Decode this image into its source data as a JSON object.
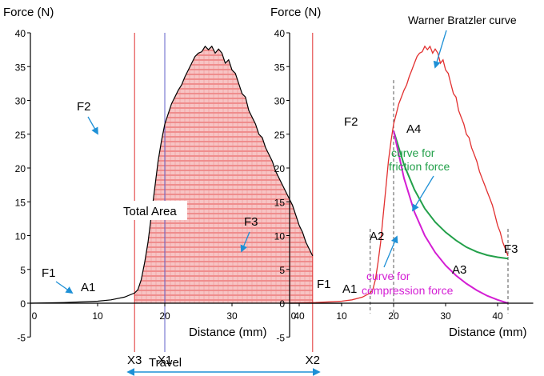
{
  "chart_data": [
    {
      "type": "area",
      "ylabel": "Force (N)",
      "xlabel": "Distance (mm)",
      "ylim": [
        -5,
        40
      ],
      "xlim": [
        0,
        45
      ],
      "y_ticks": [
        "-5",
        "0",
        "5",
        "10",
        "15",
        "20",
        "25",
        "30",
        "35",
        "40"
      ],
      "x_ticks": [
        "0",
        "10",
        "20",
        "30",
        "40"
      ],
      "colors": {
        "curve": "#000000",
        "fill": "#f08a8a",
        "fill_lines": "#e43a3a",
        "vline_red": "#e23030",
        "vline_blue": "#6060c8",
        "arrow": "#1e90d6",
        "axis": "#000000"
      },
      "series": [
        {
          "x": [
            0,
            5,
            10,
            12,
            14,
            15.5,
            16,
            16.5,
            17,
            17.5,
            18,
            18.5,
            19,
            19.5,
            20,
            20.5,
            21,
            21.5,
            22,
            22.5,
            23,
            23.5,
            24,
            24.5,
            25,
            25.5,
            26,
            26.5,
            27,
            27.5,
            28,
            28.5,
            29,
            29.5,
            30,
            30.5,
            31,
            31.5,
            32,
            32.5,
            33,
            33.5,
            34,
            34.5,
            35,
            35.5,
            36,
            36.5,
            37,
            37.5,
            38,
            38.5,
            39,
            39.5,
            40,
            40.5,
            41,
            41.5,
            42
          ],
          "values": [
            0,
            0.1,
            0.3,
            0.5,
            0.9,
            1.5,
            2.0,
            3.5,
            6.0,
            9.0,
            13.0,
            17.0,
            21.0,
            24.0,
            26.5,
            28.0,
            29.5,
            30.5,
            31.5,
            32.3,
            33.5,
            34.5,
            35.5,
            36.5,
            37.0,
            37.2,
            38.0,
            37.5,
            38.0,
            37.0,
            37.6,
            37.0,
            35.5,
            36.0,
            34.5,
            34.0,
            32.5,
            31.0,
            30.5,
            28.5,
            27.5,
            26.5,
            25.0,
            24.5,
            23.0,
            22.0,
            21.0,
            19.5,
            18.5,
            17.5,
            16.5,
            15.5,
            14.5,
            13.0,
            11.5,
            10.5,
            9.0,
            8.0,
            7.0
          ]
        }
      ],
      "vlines": [
        {
          "label": "X3",
          "x": 15.5
        },
        {
          "label": "X1",
          "x": 20
        },
        {
          "label": "X2",
          "x": 42
        }
      ],
      "annotations": [
        "F1",
        "F2",
        "F3",
        "A1",
        "Total Area",
        "Travel"
      ]
    },
    {
      "type": "line",
      "ylabel": "Force (N)",
      "xlabel": "Distance (mm)",
      "ylim": [
        -5,
        40
      ],
      "xlim": [
        0,
        45
      ],
      "y_ticks": [
        "-5",
        "0",
        "5",
        "10",
        "15",
        "20",
        "25",
        "30",
        "35",
        "40"
      ],
      "x_ticks": [
        "0",
        "10",
        "20",
        "30",
        "40"
      ],
      "colors": {
        "warner": "#e23030",
        "friction": "#23a04a",
        "compression": "#d41ed4",
        "arrow": "#1e90d6",
        "axis": "#000000"
      },
      "series": [
        {
          "name": "Warner Bratzler curve",
          "x": [
            0,
            5,
            10,
            12,
            14,
            15.5,
            16,
            16.5,
            17,
            17.5,
            18,
            18.5,
            19,
            19.5,
            20,
            20.5,
            21,
            21.5,
            22,
            22.5,
            23,
            23.5,
            24,
            24.5,
            25,
            25.5,
            26,
            26.5,
            27,
            27.5,
            28,
            28.5,
            29,
            29.5,
            30,
            30.5,
            31,
            31.5,
            32,
            32.5,
            33,
            33.5,
            34,
            34.5,
            35,
            35.5,
            36,
            36.5,
            37,
            37.5,
            38,
            38.5,
            39,
            39.5,
            40,
            40.5,
            41,
            41.5,
            42
          ],
          "values": [
            0,
            0.1,
            0.3,
            0.5,
            0.9,
            1.5,
            2.0,
            3.5,
            6.0,
            9.0,
            13.0,
            17.0,
            21.0,
            24.0,
            26.5,
            28.0,
            29.5,
            30.5,
            31.5,
            32.3,
            33.5,
            34.5,
            35.5,
            36.5,
            37.0,
            37.2,
            38.0,
            37.5,
            38.0,
            37.0,
            37.6,
            37.0,
            35.5,
            36.0,
            34.5,
            34.0,
            32.5,
            31.0,
            30.5,
            28.5,
            27.5,
            26.5,
            25.0,
            24.5,
            23.0,
            22.0,
            21.0,
            19.5,
            18.5,
            17.5,
            16.5,
            15.5,
            14.5,
            13.0,
            11.5,
            10.5,
            9.0,
            8.0,
            7.0
          ]
        },
        {
          "name": "curve for friction force",
          "x": [
            20,
            22,
            24,
            26,
            28,
            30,
            32,
            34,
            36,
            38,
            40,
            42
          ],
          "values": [
            25.5,
            20.5,
            16.8,
            14.0,
            12.0,
            10.5,
            9.3,
            8.3,
            7.6,
            7.1,
            6.8,
            6.6
          ]
        },
        {
          "name": "curve for compression force",
          "x": [
            20,
            22,
            24,
            26,
            28,
            30,
            32,
            34,
            36,
            38,
            40,
            42
          ],
          "values": [
            25.5,
            18.5,
            13.5,
            10.0,
            7.5,
            5.6,
            4.1,
            2.9,
            1.9,
            1.1,
            0.5,
            0
          ]
        }
      ],
      "vlines": [
        {
          "label": "",
          "x": 15.5
        },
        {
          "label": "",
          "x": 20
        },
        {
          "label": "",
          "x": 42
        }
      ],
      "annotations": [
        "F1",
        "F2",
        "F3",
        "A1",
        "A2",
        "A3",
        "A4"
      ],
      "series_labels": {
        "warner": "Warner Bratzler curve",
        "friction_1": "curve for",
        "friction_2": "friction force",
        "compression_1": "curve for",
        "compression_2": "compression force"
      }
    }
  ]
}
